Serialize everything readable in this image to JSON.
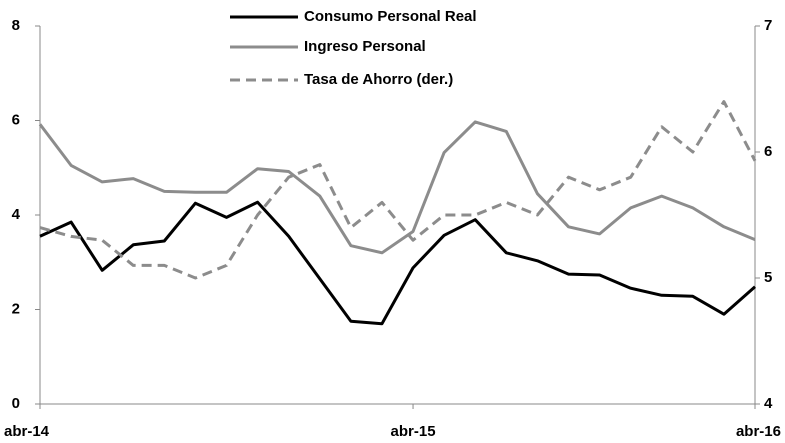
{
  "chart_data": {
    "type": "line",
    "categories": [
      "abr-14",
      null,
      null,
      null,
      null,
      null,
      null,
      null,
      null,
      null,
      null,
      null,
      "abr-15",
      null,
      null,
      null,
      null,
      null,
      null,
      null,
      null,
      null,
      null,
      "abr-16"
    ],
    "series": [
      {
        "name": "Consumo Personal Real",
        "color": "#000000",
        "dash": false,
        "values": [
          3.55,
          3.85,
          2.83,
          3.37,
          3.45,
          4.25,
          3.95,
          4.27,
          3.55,
          2.65,
          1.75,
          1.7,
          2.88,
          3.57,
          3.9,
          3.2,
          3.03,
          2.75,
          2.73,
          2.45,
          2.3,
          2.28,
          1.9,
          2.48
        ]
      },
      {
        "name": "Ingreso Personal",
        "color": "#8c8c8c",
        "dash": false,
        "values": [
          5.92,
          5.05,
          4.7,
          4.77,
          4.5,
          4.48,
          4.48,
          4.98,
          4.92,
          4.4,
          3.35,
          3.2,
          3.65,
          5.32,
          5.97,
          5.77,
          4.45,
          3.75,
          3.6,
          4.15,
          4.4,
          4.15,
          3.75,
          3.48
        ]
      },
      {
        "name": "Tasa de Ahorro (der.)",
        "color": "#8c8c8c",
        "dash": true,
        "axis": "y2",
        "values": [
          5.4,
          5.33,
          5.3,
          5.1,
          5.1,
          5.0,
          5.1,
          5.5,
          5.8,
          5.9,
          5.4,
          5.6,
          5.3,
          5.5,
          5.5,
          5.6,
          5.5,
          5.8,
          5.7,
          5.8,
          6.2,
          6.0,
          6.4,
          5.93
        ]
      }
    ],
    "ylim": [
      0,
      8
    ],
    "yticks": [
      0,
      2,
      4,
      6,
      8
    ],
    "y2lim": [
      4,
      7
    ],
    "y2ticks": [
      4,
      5,
      6,
      7
    ],
    "legend": "top"
  }
}
